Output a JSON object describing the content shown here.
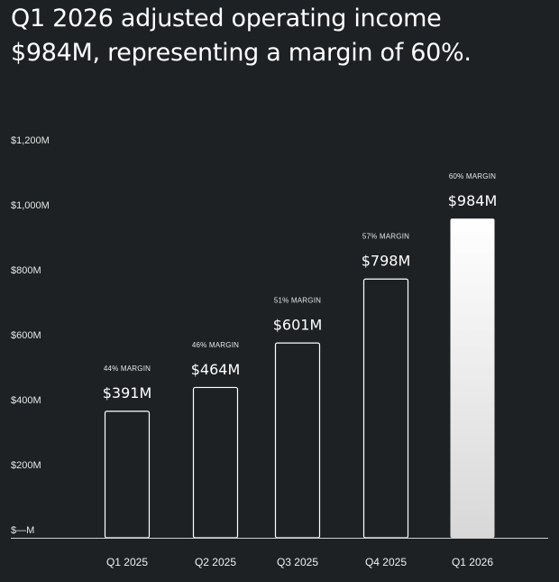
{
  "header": {
    "line1": "Q1 2026 adjusted operating income",
    "line2": "$984M, representing a margin of 60%."
  },
  "chart_data": {
    "type": "bar",
    "categories": [
      "Q1 2025",
      "Q2 2025",
      "Q3 2025",
      "Q4 2025",
      "Q1 2026"
    ],
    "values": [
      391,
      464,
      601,
      798,
      984
    ],
    "value_labels": [
      "$391M",
      "$464M",
      "$601M",
      "$798M",
      "$984M"
    ],
    "margin_labels": [
      "44% MARGIN",
      "46% MARGIN",
      "51% MARGIN",
      "57% MARGIN",
      "60% MARGIN"
    ],
    "ylim": [
      0,
      1200
    ],
    "yticks": [
      0,
      200,
      400,
      600,
      800,
      1000,
      1200
    ],
    "ytick_labels": [
      "$—M",
      "$200M",
      "$400M",
      "$600M",
      "$800M",
      "$1,000M",
      "$1,200M"
    ],
    "highlight_index": 4,
    "colors": {
      "background": "#1d2124",
      "bar_outline": "#ffffff",
      "highlight_top": "#ffffff",
      "highlight_bottom": "#d8d8d8",
      "axis": "#cfcfcf"
    },
    "grid": false,
    "title": "",
    "xlabel": "",
    "ylabel": ""
  }
}
